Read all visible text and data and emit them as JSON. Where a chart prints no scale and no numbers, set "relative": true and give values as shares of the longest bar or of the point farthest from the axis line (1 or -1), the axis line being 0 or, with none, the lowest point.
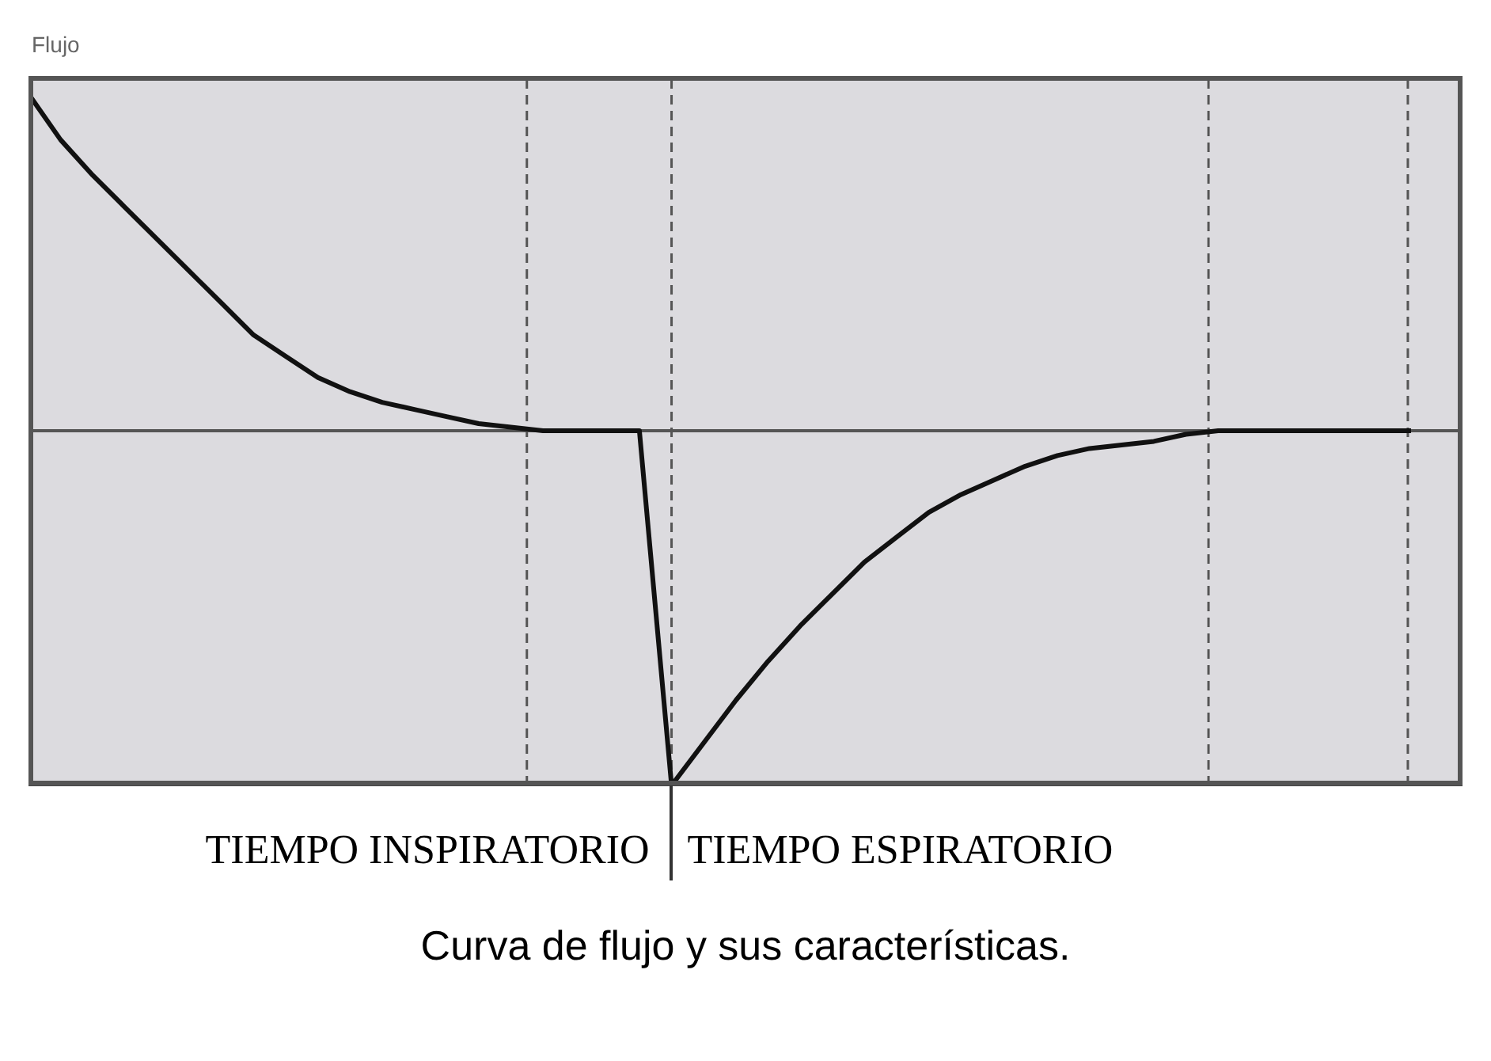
{
  "chart_data": {
    "type": "line",
    "relative": true,
    "ylabel": "Flujo",
    "categories": [
      null,
      null,
      null,
      null,
      null,
      null,
      null,
      null,
      null,
      null,
      null,
      null,
      null,
      null,
      null,
      null,
      null,
      null,
      null,
      null,
      null,
      null,
      null,
      null,
      null,
      null,
      null,
      null,
      null,
      null,
      null,
      null,
      null,
      null,
      null,
      null,
      null,
      null,
      null,
      null,
      null,
      null,
      null,
      null,
      null
    ],
    "series": [
      {
        "color": "#111111",
        "values": [
          0.95,
          0.82,
          0.72,
          0.63,
          0.54,
          0.45,
          0.36,
          0.27,
          0.21,
          0.15,
          0.11,
          0.08,
          0.06,
          0.04,
          0.02,
          0.01,
          0,
          0,
          0,
          0,
          -1,
          -0.88,
          -0.76,
          -0.65,
          -0.55,
          -0.46,
          -0.37,
          -0.3,
          -0.23,
          -0.18,
          -0.14,
          -0.1,
          -0.07,
          -0.05,
          -0.04,
          -0.03,
          -0.01,
          0,
          0,
          0,
          0,
          0,
          0,
          0,
          null
        ]
      }
    ],
    "grid": false,
    "legend": false,
    "marker": "none",
    "line_style": "solid",
    "annotations": [
      "TIEMPO INSPIRATORIO",
      "TIEMPO ESPIRATORIO",
      "Curva de flujo y sus características."
    ]
  }
}
